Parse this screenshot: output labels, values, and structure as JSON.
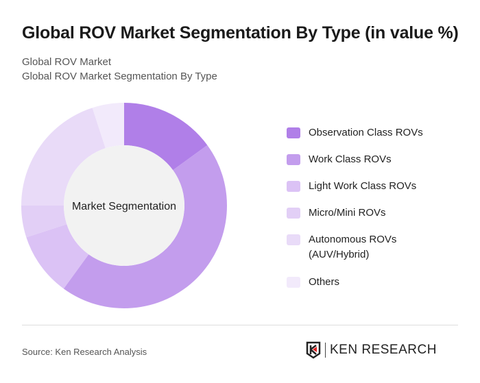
{
  "title": "Global ROV Market Segmentation By Type (in value %)",
  "subtitle1": "Global ROV Market",
  "subtitle2": "Global ROV Market Segmentation By Type",
  "chart_data": {
    "type": "pie",
    "donut": true,
    "center_label": "Market Segmentation",
    "categories": [
      "Observation Class ROVs",
      "Work Class ROVs",
      "Light Work Class ROVs",
      "Micro/Mini ROVs",
      "Autonomous ROVs (AUV/Hybrid)",
      "Others"
    ],
    "legend_lines": [
      [
        "Observation Class ROVs"
      ],
      [
        "Work Class ROVs"
      ],
      [
        "Light Work Class ROVs"
      ],
      [
        "Micro/Mini ROVs"
      ],
      [
        "Autonomous ROVs",
        "(AUV/Hybrid)"
      ],
      [
        "Others"
      ]
    ],
    "values": [
      15,
      45,
      10,
      5,
      20,
      5
    ],
    "colors": [
      "#b07fe8",
      "#c39ded",
      "#dbc2f5",
      "#e2cff6",
      "#e9dbf8",
      "#f2eafb"
    ],
    "legend_placement": "right"
  },
  "footer": {
    "source": "Source: Ken Research Analysis",
    "logo_text": "KEN RESEARCH"
  }
}
